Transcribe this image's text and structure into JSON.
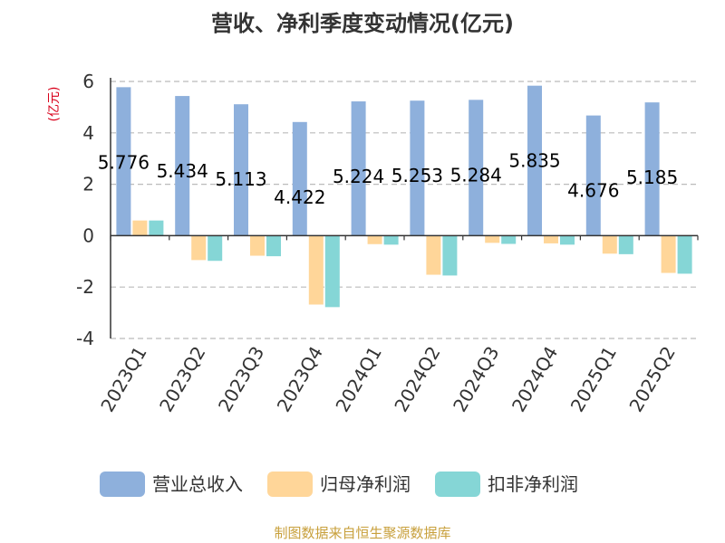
{
  "chart_data": {
    "type": "bar",
    "title": "营收、净利季度变动情况(亿元)",
    "unit_label": "(亿元)",
    "categories": [
      "2023Q1",
      "2023Q2",
      "2023Q3",
      "2023Q4",
      "2024Q1",
      "2024Q2",
      "2024Q3",
      "2024Q4",
      "2025Q1",
      "2025Q2"
    ],
    "series": [
      {
        "name": "营业总收入",
        "color": "#8eb0dc",
        "values": [
          5.776,
          5.434,
          5.113,
          4.422,
          5.224,
          5.253,
          5.284,
          5.835,
          4.676,
          5.185
        ]
      },
      {
        "name": "归母净利润",
        "color": "#ffd699",
        "values": [
          0.59,
          -0.95,
          -0.78,
          -2.68,
          -0.33,
          -1.52,
          -0.28,
          -0.3,
          -0.7,
          -1.45
        ]
      },
      {
        "name": "扣非净利润",
        "color": "#85d6d6",
        "values": [
          0.59,
          -0.98,
          -0.8,
          -2.78,
          -0.35,
          -1.55,
          -0.32,
          -0.35,
          -0.72,
          -1.48
        ]
      }
    ],
    "data_labels": [
      "5.776",
      "5.434",
      "5.113",
      "4.422",
      "5.224",
      "5.253",
      "5.284",
      "5.835",
      "4.676",
      "5.185"
    ],
    "ylim": [
      -4,
      6
    ],
    "yticks": [
      6,
      4,
      2,
      0,
      -2,
      -4
    ],
    "grid": true,
    "legend_position": "bottom"
  },
  "source_note": "制图数据来自恒生聚源数据库"
}
